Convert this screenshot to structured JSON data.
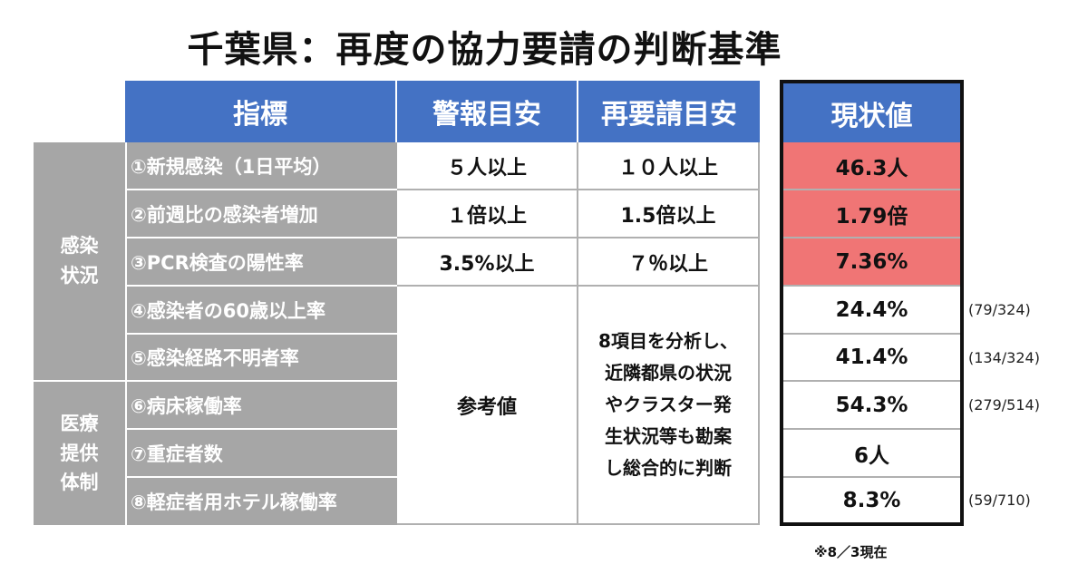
{
  "title": "千葉県：再度の協力要請の判断基準",
  "headers": {
    "indicator": "指標",
    "warning": "警報目安",
    "rerequest": "再要請目安",
    "current": "現状値"
  },
  "groups": {
    "infection": "感染\n状況",
    "medical": "医療\n提供\n体制"
  },
  "rows": [
    {
      "indicator": "①新規感染（1日平均）",
      "warning": "５人以上",
      "rerequest": "１０人以上",
      "current": "46.3人",
      "ratio": ""
    },
    {
      "indicator": "②前週比の感染者増加",
      "warning": "１倍以上",
      "rerequest": "1.5倍以上",
      "current": "1.79倍",
      "ratio": ""
    },
    {
      "indicator": "③PCR検査の陽性率",
      "warning": "3.5%以上",
      "rerequest": "７％以上",
      "current": "7.36%",
      "ratio": ""
    },
    {
      "indicator": "④感染者の60歳以上率",
      "current": "24.4%",
      "ratio": "(79/324)"
    },
    {
      "indicator": "⑤感染経路不明者率",
      "current": "41.4%",
      "ratio": "(134/324)"
    },
    {
      "indicator": "⑥病床稼働率",
      "current": "54.3%",
      "ratio": "(279/514)"
    },
    {
      "indicator": "⑦重症者数",
      "current": "6人",
      "ratio": ""
    },
    {
      "indicator": "⑧軽症者用ホテル稼働率",
      "current": "8.3%",
      "ratio": "(59/710)"
    }
  ],
  "reference_value": "参考値",
  "rerequest_note": "8項目を分析し、\n近隣都県の状況\nやクラスター発\n生状況等も勘案\nし総合的に判断",
  "date_note": "※8／3現在",
  "colors": {
    "header": "#4472c4",
    "gray": "#a6a6a6",
    "alert": "#f07575"
  }
}
